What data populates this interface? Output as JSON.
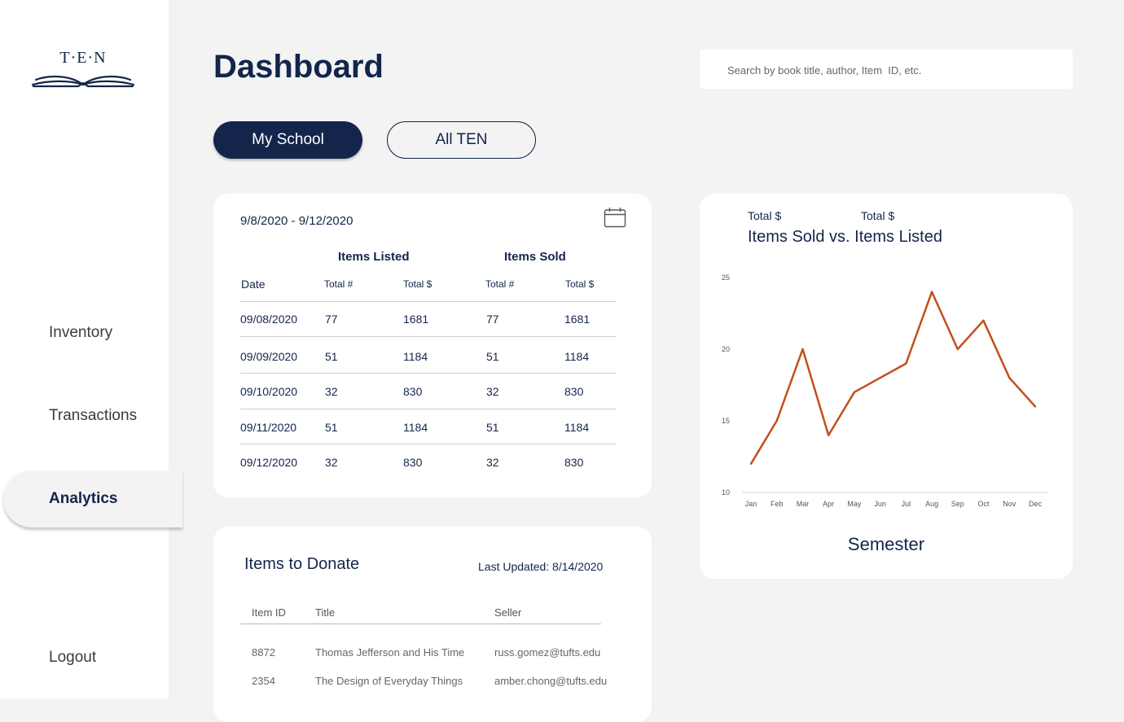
{
  "brand": {
    "logo_text": "T·E·N"
  },
  "sidebar": {
    "items": [
      {
        "label": "Inventory"
      },
      {
        "label": "Transactions"
      },
      {
        "label": "Analytics",
        "active": true
      },
      {
        "label": "Logout"
      }
    ]
  },
  "header": {
    "title": "Dashboard",
    "search_placeholder": "Search by book title, author, Item  ID, etc."
  },
  "toggle": {
    "my_school": "My School",
    "all_ten": "All TEN",
    "selected": "My School"
  },
  "summary_table": {
    "date_range": "9/8/2020 - 9/12/2020",
    "group_listed": "Items Listed",
    "group_sold": "Items Sold",
    "col_date": "Date",
    "col_total_count": "Total #",
    "col_total_dollar": "Total $",
    "rows": [
      {
        "date": "09/08/2020",
        "listed_count": "77",
        "listed_total": "1681",
        "sold_count": "77",
        "sold_total": "1681"
      },
      {
        "date": "09/09/2020",
        "listed_count": "51",
        "listed_total": "1184",
        "sold_count": "51",
        "sold_total": "1184"
      },
      {
        "date": "09/10/2020",
        "listed_count": "32",
        "listed_total": "830",
        "sold_count": "32",
        "sold_total": "830"
      },
      {
        "date": "09/11/2020",
        "listed_count": "51",
        "listed_total": "1184",
        "sold_count": "51",
        "sold_total": "1184"
      },
      {
        "date": "09/12/2020",
        "listed_count": "32",
        "listed_total": "830",
        "sold_count": "32",
        "sold_total": "830"
      }
    ]
  },
  "chart_card": {
    "caption_left": "Total $",
    "caption_right": "Total $",
    "title": "Items Sold vs. Items Listed",
    "xlabel": "Semester"
  },
  "chart_data": {
    "type": "line",
    "title": "Items Sold vs. Items Listed",
    "xlabel": "Semester",
    "ylabel": "",
    "x": [
      "Jan",
      "Feb",
      "Mar",
      "Apr",
      "May",
      "Jun",
      "Jul",
      "Aug",
      "Sep",
      "Oct",
      "Nov",
      "Dec"
    ],
    "series": [
      {
        "values": [
          12,
          15,
          20,
          14,
          17,
          18,
          19,
          24,
          20,
          22,
          18,
          16
        ],
        "color": "#c0501b"
      }
    ],
    "ylim": [
      10,
      25
    ],
    "yticks": [
      "10",
      "15",
      "20",
      "25"
    ],
    "grid": false
  },
  "donate": {
    "title": "Items to Donate",
    "last_updated": "Last Updated: 8/14/2020",
    "col_item_id": "Item ID",
    "col_title": "Title",
    "col_seller": "Seller",
    "rows": [
      {
        "id": "8872",
        "title": "Thomas Jefferson and His Time",
        "seller": "russ.gomez@tufts.edu"
      },
      {
        "id": "2354",
        "title": "The Design of Everyday Things",
        "seller": "amber.chong@tufts.edu"
      }
    ]
  },
  "colors": {
    "navy": "#13254b",
    "accent_line": "#c0501b",
    "background": "#f3f3f3"
  },
  "icons": {
    "calendar": "calendar-icon",
    "logo_book": "open-book-icon"
  }
}
